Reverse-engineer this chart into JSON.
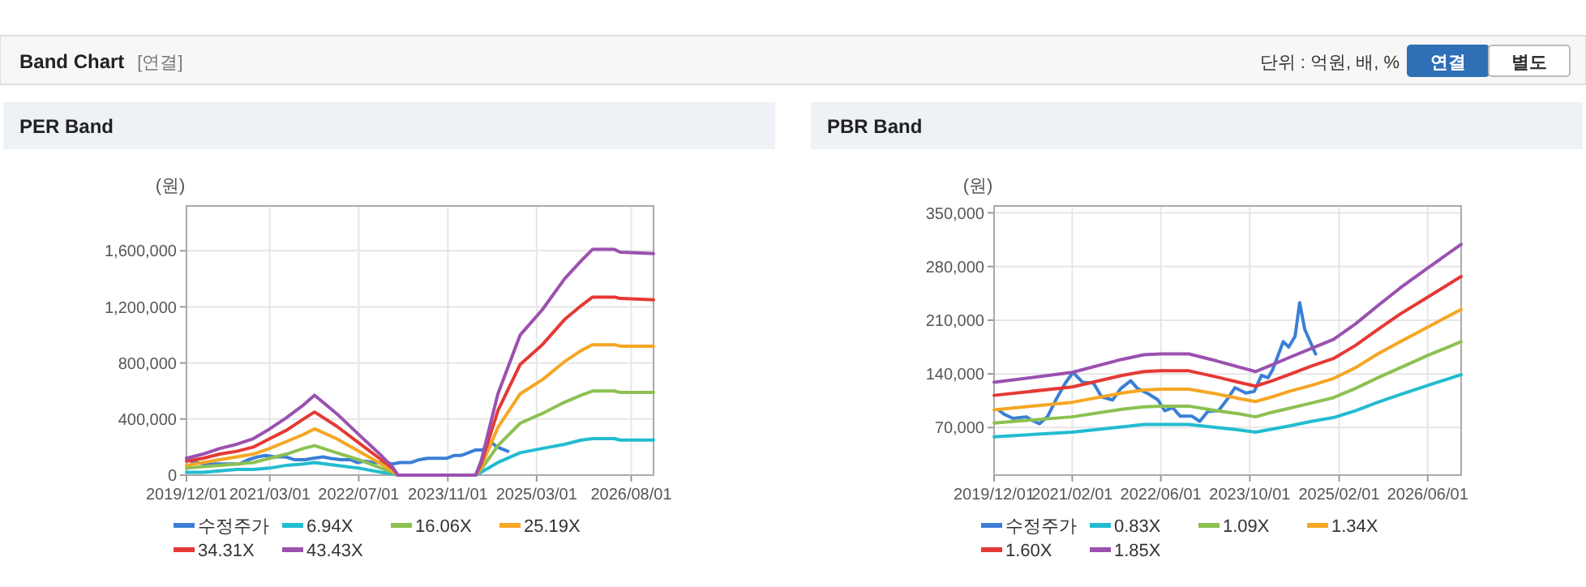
{
  "chart_data": [
    {
      "type": "other",
      "title": "Band Chart",
      "annotations": [
        "[연결]",
        "단위 : 억원, 배, %",
        "연결",
        "별도"
      ]
    },
    {
      "type": "line",
      "title": "PER Band",
      "ylabel": "(원)",
      "grid": true,
      "legend": "bottom",
      "marker": "none",
      "line_style": "solid",
      "xlim": [
        "2019-12-01",
        "2026-12-01"
      ],
      "ylim": [
        0,
        1920000
      ],
      "xticks": [
        {
          "value": "2019-12-01",
          "label": "2019/12/01"
        },
        {
          "value": "2021-03-01",
          "label": "2021/03/01"
        },
        {
          "value": "2022-07-01",
          "label": "2022/07/01"
        },
        {
          "value": "2023-11-01",
          "label": "2023/11/01"
        },
        {
          "value": "2025-03-01",
          "label": "2025/03/01"
        },
        {
          "value": "2026-08-01",
          "label": "2026/08/01"
        }
      ],
      "yticks": [
        {
          "value": 0,
          "label": "0"
        },
        {
          "value": 400000,
          "label": "400,000"
        },
        {
          "value": 800000,
          "label": "800,000"
        },
        {
          "value": 1200000,
          "label": "1,200,000"
        },
        {
          "value": 1600000,
          "label": "1,600,000"
        }
      ],
      "x": [
        "2019-12",
        "2020-03",
        "2020-06",
        "2020-09",
        "2020-12",
        "2021-03",
        "2021-06",
        "2021-09",
        "2021-11",
        "2022-03",
        "2022-07",
        "2022-11",
        "2023-01",
        "2023-02",
        "2024-04",
        "2024-05",
        "2024-08",
        "2024-12",
        "2025-04",
        "2025-08",
        "2025-11",
        "2026-01",
        "2026-05",
        "2026-06",
        "2026-12"
      ],
      "series": [
        {
          "name": "수정주가",
          "color": "#3a7fd5",
          "x": [
            "2019-12-31",
            "2020-01-28",
            "2020-03-13",
            "2020-05-25",
            "2020-06-22",
            "2020-08-06",
            "2020-09-18",
            "2020-11-03",
            "2020-12-25",
            "2021-02-05",
            "2021-03-30",
            "2021-05-28",
            "2021-07-12",
            "2021-09-10",
            "2021-10-25",
            "2021-12-18",
            "2022-01-24",
            "2022-03-25",
            "2022-05-16",
            "2022-06-22",
            "2022-08-05",
            "2022-09-14",
            "2022-11-17",
            "2022-12-31",
            "2023-02-13",
            "2023-04-13",
            "2023-05-28",
            "2023-07-12",
            "2023-09-09",
            "2023-10-25",
            "2023-12-04",
            "2024-01-09",
            "2024-02-02",
            "2024-04-01",
            "2024-05-01",
            "2024-06-05",
            "2024-06-30",
            "2024-07-28",
            "2024-09-25"
          ],
          "values": [
            90000,
            90000,
            80000,
            80000,
            80000,
            80000,
            80000,
            110000,
            130000,
            140000,
            130000,
            130000,
            110000,
            110000,
            120000,
            130000,
            120000,
            110000,
            110000,
            90000,
            100000,
            90000,
            90000,
            80000,
            90000,
            90000,
            110000,
            120000,
            120000,
            120000,
            140000,
            140000,
            150000,
            180000,
            180000,
            190000,
            230000,
            200000,
            170000
          ]
        },
        {
          "name": "6.94X",
          "color": "#22bcd0",
          "values": [
            20000,
            20000,
            30000,
            40000,
            40000,
            50000,
            70000,
            80000,
            90000,
            70000,
            50000,
            20000,
            10000,
            0,
            0,
            20000,
            90000,
            160000,
            190000,
            220000,
            250000,
            260000,
            260000,
            250000,
            250000
          ]
        },
        {
          "name": "16.06X",
          "color": "#8cc152",
          "values": [
            50000,
            60000,
            70000,
            80000,
            90000,
            120000,
            150000,
            190000,
            210000,
            160000,
            110000,
            50000,
            20000,
            0,
            0,
            40000,
            210000,
            370000,
            440000,
            520000,
            570000,
            600000,
            600000,
            590000,
            590000
          ]
        },
        {
          "name": "25.19X",
          "color": "#f6a623",
          "values": [
            70000,
            90000,
            110000,
            130000,
            150000,
            190000,
            240000,
            290000,
            330000,
            260000,
            170000,
            80000,
            30000,
            0,
            0,
            60000,
            340000,
            580000,
            680000,
            810000,
            890000,
            930000,
            930000,
            920000,
            920000
          ]
        },
        {
          "name": "34.31X",
          "color": "#e53935",
          "values": [
            100000,
            120000,
            150000,
            170000,
            200000,
            260000,
            320000,
            400000,
            450000,
            350000,
            230000,
            110000,
            50000,
            0,
            0,
            80000,
            460000,
            790000,
            930000,
            1110000,
            1210000,
            1270000,
            1270000,
            1260000,
            1250000
          ]
        },
        {
          "name": "43.43X",
          "color": "#9b51b0",
          "values": [
            120000,
            150000,
            190000,
            220000,
            260000,
            330000,
            410000,
            500000,
            570000,
            440000,
            290000,
            140000,
            60000,
            0,
            0,
            100000,
            580000,
            1000000,
            1180000,
            1400000,
            1530000,
            1610000,
            1610000,
            1590000,
            1580000
          ]
        }
      ]
    },
    {
      "type": "line",
      "title": "PBR Band",
      "ylabel": "(원)",
      "grid": true,
      "legend": "bottom",
      "marker": "none",
      "line_style": "solid",
      "xlim": [
        "2019-12-01",
        "2026-12-01"
      ],
      "ylim": [
        8000,
        359000
      ],
      "xticks": [
        {
          "value": "2019-12-01",
          "label": "2019/12/01"
        },
        {
          "value": "2021-02-01",
          "label": "2021/02/01"
        },
        {
          "value": "2022-06-01",
          "label": "2022/06/01"
        },
        {
          "value": "2023-10-01",
          "label": "2023/10/01"
        },
        {
          "value": "2025-02-01",
          "label": "2025/02/01"
        },
        {
          "value": "2026-06-01",
          "label": "2026/06/01"
        }
      ],
      "yticks": [
        {
          "value": 70000,
          "label": "70,000"
        },
        {
          "value": 140000,
          "label": "140,000"
        },
        {
          "value": 210000,
          "label": "210,000"
        },
        {
          "value": 280000,
          "label": "280,000"
        },
        {
          "value": 350000,
          "label": "350,000"
        }
      ],
      "x": [
        "2019-12",
        "2021-02",
        "2021-11",
        "2022-03",
        "2022-06",
        "2022-11",
        "2023-04",
        "2023-08",
        "2023-11",
        "2024-02",
        "2024-05",
        "2024-09",
        "2025-01",
        "2025-05",
        "2025-09",
        "2026-01",
        "2026-06",
        "2026-12"
      ],
      "series": [
        {
          "name": "수정주가",
          "color": "#3a7fd5",
          "x": [
            "2019-12-31",
            "2020-01-28",
            "2020-03-13",
            "2020-05-25",
            "2020-06-22",
            "2020-08-06",
            "2020-09-18",
            "2020-11-03",
            "2020-12-25",
            "2021-02-05",
            "2021-03-30",
            "2021-05-28",
            "2021-07-12",
            "2021-09-10",
            "2021-10-25",
            "2021-12-18",
            "2022-01-24",
            "2022-03-25",
            "2022-05-16",
            "2022-06-22",
            "2022-08-05",
            "2022-09-14",
            "2022-11-17",
            "2022-12-31",
            "2023-02-13",
            "2023-04-13",
            "2023-05-28",
            "2023-07-12",
            "2023-09-09",
            "2023-10-25",
            "2023-12-04",
            "2024-01-09",
            "2024-02-02",
            "2024-04-01",
            "2024-05-01",
            "2024-06-05",
            "2024-06-30",
            "2024-07-28",
            "2024-09-25"
          ],
          "values": [
            92000,
            87000,
            82000,
            84000,
            80000,
            75000,
            84000,
            106000,
            128000,
            142000,
            129000,
            128000,
            110000,
            106000,
            121000,
            131000,
            121000,
            114000,
            106000,
            92000,
            96000,
            85000,
            85000,
            78000,
            91000,
            92000,
            106000,
            122000,
            115000,
            117000,
            138000,
            135000,
            145000,
            182000,
            175000,
            189000,
            233000,
            198000,
            166000
          ]
        },
        {
          "name": "0.83X",
          "color": "#22bcd0",
          "values": [
            58000,
            64000,
            71000,
            74000,
            74000,
            74000,
            70000,
            67000,
            64000,
            68000,
            72000,
            78000,
            83000,
            92000,
            103000,
            113000,
            125000,
            139000
          ]
        },
        {
          "name": "1.09X",
          "color": "#8cc152",
          "values": [
            76000,
            84000,
            94000,
            97000,
            98000,
            98000,
            92000,
            88000,
            84000,
            90000,
            95000,
            102000,
            109000,
            121000,
            135000,
            148000,
            164000,
            182000
          ]
        },
        {
          "name": "1.34X",
          "color": "#f6a623",
          "values": [
            93000,
            103000,
            115000,
            119000,
            120000,
            120000,
            114000,
            108000,
            104000,
            110000,
            117000,
            125000,
            134000,
            148000,
            166000,
            182000,
            201000,
            224000
          ]
        },
        {
          "name": "1.60X",
          "color": "#e53935",
          "values": [
            112000,
            123000,
            138000,
            143000,
            144000,
            144000,
            136000,
            129000,
            124000,
            131000,
            139000,
            150000,
            160000,
            177000,
            198000,
            218000,
            240000,
            267000
          ]
        },
        {
          "name": "1.85X",
          "color": "#9b51b0",
          "values": [
            129000,
            142000,
            159000,
            165000,
            166000,
            166000,
            157000,
            149000,
            143000,
            152000,
            161000,
            173000,
            185000,
            205000,
            229000,
            252000,
            278000,
            309000
          ]
        }
      ]
    }
  ]
}
